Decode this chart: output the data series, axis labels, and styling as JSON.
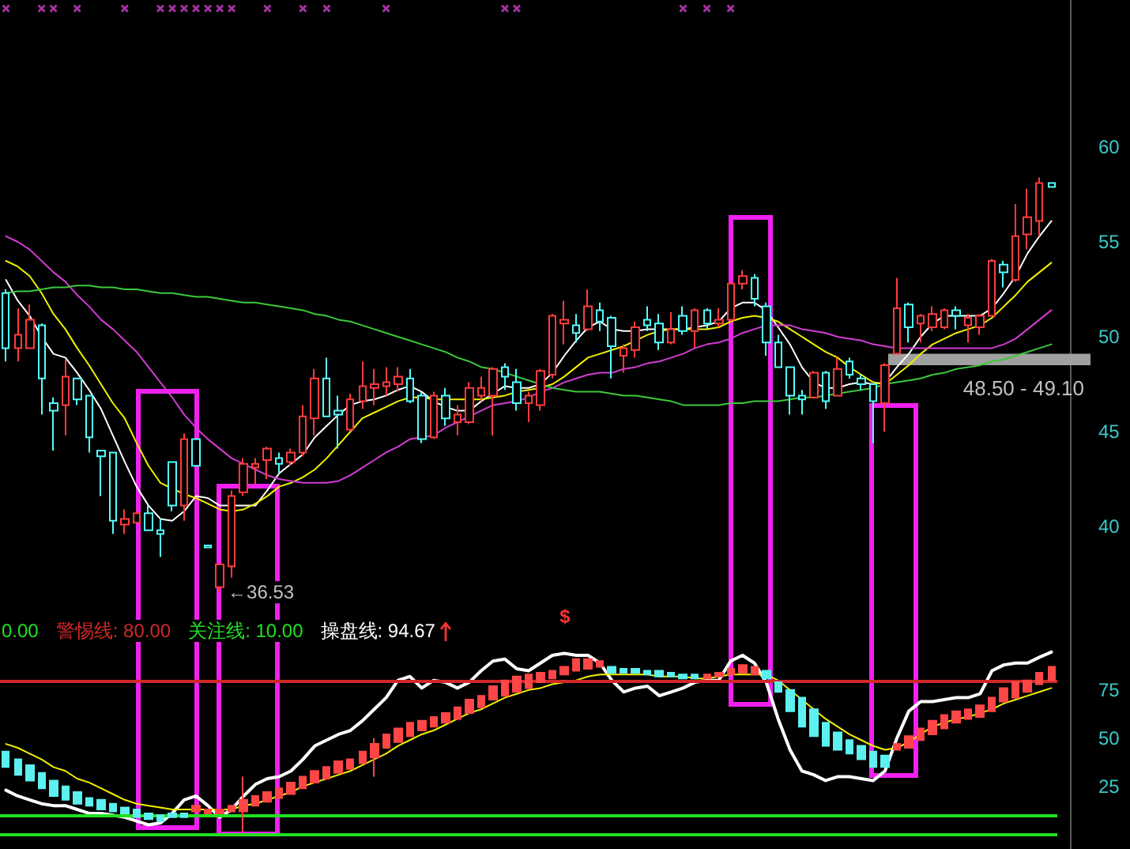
{
  "chart_data": [
    {
      "type": "candlestick",
      "categories": [
        null,
        null,
        null,
        null,
        null,
        null,
        null,
        null,
        null,
        null,
        null,
        null,
        null,
        null,
        null,
        null,
        null,
        null,
        null,
        null,
        null,
        null,
        null,
        null,
        null,
        null,
        null,
        null,
        null,
        null,
        null,
        null,
        null,
        null,
        null,
        null,
        null,
        null,
        null,
        null,
        null,
        null,
        null,
        null,
        null,
        null,
        null,
        null,
        null,
        null,
        null,
        null,
        null,
        null,
        null,
        null,
        null,
        null,
        null,
        null,
        null,
        null,
        null,
        null,
        null,
        null,
        null,
        null,
        null,
        null,
        null,
        null,
        null,
        null,
        null,
        null,
        null,
        null,
        null,
        null,
        null,
        null,
        null,
        null,
        null,
        null,
        null,
        null,
        null
      ],
      "ohlc": [
        [
          52.3,
          52.5,
          48.7,
          49.4
        ],
        [
          49.4,
          51.5,
          48.7,
          50.1
        ],
        [
          49.4,
          51.7,
          49.4,
          50.9
        ],
        [
          50.6,
          50.7,
          45.9,
          47.8
        ],
        [
          46.5,
          46.8,
          44.0,
          46.1
        ],
        [
          46.4,
          48.8,
          44.8,
          47.9
        ],
        [
          47.8,
          47.8,
          46.4,
          46.7
        ],
        [
          46.9,
          46.9,
          43.9,
          44.7
        ],
        [
          44.0,
          44.0,
          41.6,
          43.7
        ],
        [
          43.9,
          43.9,
          39.6,
          40.3
        ],
        [
          40.1,
          40.9,
          39.6,
          40.4
        ],
        [
          40.2,
          40.8,
          40.2,
          40.7
        ],
        [
          40.7,
          41.1,
          39.8,
          39.8
        ],
        [
          39.8,
          40.4,
          38.4,
          39.6
        ],
        [
          43.4,
          43.4,
          40.8,
          41.1
        ],
        [
          41.1,
          44.9,
          40.3,
          44.6
        ],
        [
          44.6,
          44.6,
          43.2,
          43.2
        ],
        [
          39.0,
          39.0,
          38.9,
          38.9
        ],
        [
          36.8,
          38.0,
          36.53,
          38.0
        ],
        [
          37.9,
          41.9,
          37.3,
          41.6
        ],
        [
          41.8,
          43.6,
          41.6,
          43.3
        ],
        [
          43.1,
          43.6,
          42.2,
          43.3
        ],
        [
          43.5,
          44.2,
          42.5,
          44.1
        ],
        [
          43.6,
          43.9,
          42.8,
          43.3
        ],
        [
          43.4,
          44.1,
          43.2,
          43.9
        ],
        [
          43.9,
          46.4,
          43.7,
          45.8
        ],
        [
          45.7,
          48.3,
          44.8,
          47.8
        ],
        [
          47.8,
          48.9,
          45.8,
          45.8
        ],
        [
          46.1,
          46.9,
          44.1,
          45.9
        ],
        [
          45.1,
          47.0,
          45.0,
          46.7
        ],
        [
          46.6,
          48.7,
          46.2,
          47.4
        ],
        [
          47.3,
          48.3,
          46.4,
          47.5
        ],
        [
          47.4,
          48.4,
          46.9,
          47.6
        ],
        [
          47.5,
          48.4,
          47.1,
          47.9
        ],
        [
          47.8,
          48.3,
          46.5,
          46.6
        ],
        [
          46.9,
          47.1,
          44.4,
          44.6
        ],
        [
          44.7,
          47.1,
          44.6,
          46.9
        ],
        [
          46.9,
          47.3,
          45.3,
          45.7
        ],
        [
          45.5,
          46.4,
          44.8,
          45.9
        ],
        [
          45.5,
          47.6,
          45.4,
          47.3
        ],
        [
          46.9,
          47.9,
          46.6,
          47.3
        ],
        [
          46.9,
          48.4,
          44.8,
          48.3
        ],
        [
          48.4,
          48.6,
          47.2,
          47.9
        ],
        [
          47.6,
          48.3,
          46.1,
          46.5
        ],
        [
          46.5,
          47.1,
          45.5,
          46.9
        ],
        [
          46.4,
          48.3,
          46.1,
          48.2
        ],
        [
          48.0,
          51.2,
          47.8,
          51.1
        ],
        [
          50.7,
          51.9,
          49.6,
          50.9
        ],
        [
          50.6,
          51.2,
          49.7,
          50.2
        ],
        [
          50.4,
          52.5,
          50.3,
          51.6
        ],
        [
          51.4,
          51.8,
          50.3,
          50.8
        ],
        [
          51.0,
          51.1,
          47.8,
          49.5
        ],
        [
          49.0,
          49.6,
          48.1,
          49.4
        ],
        [
          49.3,
          50.8,
          48.9,
          50.5
        ],
        [
          50.9,
          51.6,
          50.3,
          50.6
        ],
        [
          50.7,
          51.2,
          49.3,
          49.7
        ],
        [
          49.7,
          51.3,
          49.6,
          50.4
        ],
        [
          51.1,
          51.6,
          50.1,
          50.3
        ],
        [
          50.3,
          51.5,
          49.4,
          51.4
        ],
        [
          51.4,
          51.5,
          50.4,
          50.7
        ],
        [
          50.7,
          51.5,
          50.5,
          50.9
        ],
        [
          50.9,
          52.9,
          50.8,
          52.8
        ],
        [
          52.8,
          53.5,
          52.5,
          53.2
        ],
        [
          53.1,
          53.3,
          51.6,
          52.0
        ],
        [
          51.6,
          51.8,
          49.0,
          49.7
        ],
        [
          49.7,
          50.1,
          48.4,
          48.4
        ],
        [
          48.4,
          48.4,
          45.9,
          46.9
        ],
        [
          46.9,
          47.2,
          45.9,
          46.7
        ],
        [
          46.8,
          48.2,
          46.8,
          48.1
        ],
        [
          48.1,
          48.2,
          46.2,
          46.6
        ],
        [
          46.9,
          48.9,
          46.9,
          48.3
        ],
        [
          48.7,
          48.9,
          47.8,
          48.0
        ],
        [
          47.8,
          48.0,
          47.2,
          47.5
        ],
        [
          47.5,
          47.5,
          44.4,
          46.6
        ],
        [
          46.5,
          48.6,
          45.0,
          48.5
        ],
        [
          49.1,
          53.1,
          49.1,
          51.5
        ],
        [
          51.7,
          51.8,
          49.7,
          50.5
        ],
        [
          50.7,
          51.2,
          49.7,
          51.1
        ],
        [
          50.5,
          51.6,
          50.3,
          51.2
        ],
        [
          50.5,
          51.5,
          50.4,
          51.4
        ],
        [
          51.4,
          51.6,
          50.4,
          51.1
        ],
        [
          50.6,
          51.2,
          49.7,
          51.0
        ],
        [
          50.5,
          51.2,
          50.1,
          51.1
        ],
        [
          51.1,
          54.1,
          51.1,
          54.0
        ],
        [
          53.8,
          54.0,
          52.6,
          53.4
        ],
        [
          53.0,
          57.0,
          52.9,
          55.3
        ],
        [
          55.4,
          57.8,
          54.6,
          56.3
        ],
        [
          56.1,
          58.4,
          55.3,
          58.1
        ],
        [
          58.1,
          58.1,
          57.9,
          57.9
        ]
      ],
      "colors": [
        "#54fcfc",
        "#ff3c3c",
        "#ff3c3c",
        "#54fcfc",
        "#54fcfc",
        "#ff3c3c",
        "#54fcfc",
        "#54fcfc",
        "#54fcfc",
        "#54fcfc",
        "#ff3c3c",
        "#ff3c3c",
        "#54fcfc",
        "#54fcfc",
        "#54fcfc",
        "#ff3c3c",
        "#54fcfc",
        "#54fcfc",
        "#ff3c3c",
        "#ff3c3c",
        "#ff3c3c",
        "#ff3c3c",
        "#ff3c3c",
        "#54fcfc",
        "#ff3c3c",
        "#ff3c3c",
        "#ff3c3c",
        "#54fcfc",
        "#54fcfc",
        "#ff3c3c",
        "#ff3c3c",
        "#ff3c3c",
        "#ff3c3c",
        "#ff3c3c",
        "#54fcfc",
        "#54fcfc",
        "#ff3c3c",
        "#54fcfc",
        "#ff3c3c",
        "#ff3c3c",
        "#ff3c3c",
        "#ff3c3c",
        "#54fcfc",
        "#54fcfc",
        "#ff3c3c",
        "#ff3c3c",
        "#ff3c3c",
        "#ff3c3c",
        "#54fcfc",
        "#ff3c3c",
        "#54fcfc",
        "#54fcfc",
        "#ff3c3c",
        "#ff3c3c",
        "#54fcfc",
        "#54fcfc",
        "#ff3c3c",
        "#54fcfc",
        "#ff3c3c",
        "#54fcfc",
        "#ff3c3c",
        "#ff3c3c",
        "#ff3c3c",
        "#54fcfc",
        "#54fcfc",
        "#54fcfc",
        "#54fcfc",
        "#54fcfc",
        "#ff3c3c",
        "#54fcfc",
        "#ff3c3c",
        "#54fcfc",
        "#54fcfc",
        "#54fcfc",
        "#ff3c3c",
        "#ff3c3c",
        "#54fcfc",
        "#ff3c3c",
        "#ff3c3c",
        "#ff3c3c",
        "#54fcfc",
        "#ff3c3c",
        "#ff3c3c",
        "#ff3c3c",
        "#54fcfc",
        "#ff3c3c",
        "#ff3c3c",
        "#ff3c3c",
        "#54fcfc"
      ],
      "series": [
        {
          "type": "line",
          "color": "#ffffff",
          "values": [
            53.0,
            51.9,
            51.1,
            50.0,
            49.1,
            48.9,
            48.1,
            47.2,
            46.2,
            44.8,
            43.4,
            42.1,
            41.1,
            40.4,
            40.3,
            40.8,
            41.6,
            41.5,
            41.1,
            41.1,
            41.1,
            41.1,
            41.9,
            42.8,
            43.3,
            43.8,
            44.7,
            45.3,
            45.9,
            46.4,
            46.6,
            46.7,
            46.9,
            47.2,
            47.4,
            47.1,
            46.6,
            46.3,
            46.1,
            46.1,
            46.6,
            47.0,
            47.4,
            47.3,
            47.3,
            47.5,
            48.1,
            49.0,
            49.8,
            50.5,
            50.8,
            50.4,
            50.3,
            50.3,
            50.4,
            50.4,
            50.4,
            50.4,
            50.5,
            50.6,
            50.8,
            51.5,
            51.8,
            51.8,
            51.4,
            50.5,
            49.6,
            48.4,
            47.6,
            47.3,
            47.3,
            47.5,
            47.6,
            47.5,
            47.6,
            48.4,
            49.1,
            50.0,
            50.7,
            51.1,
            51.1,
            51.1,
            51.1,
            51.5,
            52.3,
            53.2,
            54.4,
            55.3,
            56.1
          ]
        },
        {
          "type": "line",
          "color": "#f0f000",
          "values": [
            54.0,
            53.7,
            53.2,
            52.3,
            51.2,
            50.4,
            49.4,
            48.5,
            47.5,
            46.5,
            45.7,
            44.4,
            43.2,
            42.3,
            42.0,
            41.7,
            41.5,
            41.2,
            40.9,
            40.8,
            40.9,
            41.2,
            41.6,
            42.1,
            42.3,
            42.6,
            43.0,
            43.6,
            44.3,
            45.0,
            45.7,
            46.0,
            46.3,
            46.6,
            46.8,
            46.8,
            46.7,
            46.7,
            46.7,
            46.7,
            46.7,
            46.8,
            46.9,
            47.1,
            47.2,
            47.3,
            47.5,
            47.9,
            48.4,
            48.9,
            49.1,
            49.3,
            49.5,
            49.8,
            50.1,
            50.3,
            50.4,
            50.4,
            50.4,
            50.4,
            50.5,
            50.8,
            51.0,
            51.1,
            51.0,
            50.8,
            50.4,
            50.0,
            49.6,
            49.2,
            48.9,
            48.4,
            48.0,
            47.6,
            47.5,
            48.0,
            48.5,
            49.1,
            49.6,
            49.9,
            50.2,
            50.4,
            50.6,
            51.0,
            51.6,
            52.2,
            52.9,
            53.4,
            53.9
          ]
        },
        {
          "type": "line",
          "color": "#d23cd2",
          "values": [
            55.3,
            55.0,
            54.6,
            54.0,
            53.4,
            52.9,
            52.2,
            51.6,
            50.9,
            50.4,
            49.8,
            49.2,
            48.4,
            47.6,
            46.8,
            45.9,
            45.2,
            44.6,
            44.1,
            43.6,
            43.3,
            43.0,
            42.7,
            42.5,
            42.4,
            42.3,
            42.3,
            42.3,
            42.4,
            42.7,
            43.1,
            43.5,
            43.9,
            44.2,
            44.6,
            44.7,
            44.8,
            45.2,
            45.5,
            45.8,
            46.1,
            46.4,
            46.5,
            46.6,
            46.8,
            47.1,
            47.3,
            47.6,
            47.8,
            48.0,
            48.1,
            48.1,
            48.3,
            48.4,
            48.6,
            48.7,
            48.9,
            49.1,
            49.4,
            49.6,
            49.7,
            49.9,
            50.2,
            50.4,
            50.6,
            50.6,
            50.6,
            50.4,
            50.3,
            50.2,
            50.0,
            49.9,
            49.8,
            49.6,
            49.5,
            49.4,
            49.4,
            49.4,
            49.4,
            49.4,
            49.4,
            49.4,
            49.4,
            49.4,
            49.6,
            49.9,
            50.4,
            50.9,
            51.4
          ]
        },
        {
          "type": "line",
          "color": "#3cc83c",
          "values": [
            52.3,
            52.4,
            52.4,
            52.5,
            52.6,
            52.6,
            52.7,
            52.7,
            52.6,
            52.6,
            52.5,
            52.5,
            52.4,
            52.3,
            52.3,
            52.2,
            52.1,
            52.1,
            52.0,
            51.9,
            51.8,
            51.8,
            51.7,
            51.6,
            51.5,
            51.4,
            51.2,
            51.1,
            50.9,
            50.8,
            50.6,
            50.4,
            50.2,
            50.0,
            49.8,
            49.6,
            49.4,
            49.2,
            48.9,
            48.7,
            48.4,
            48.3,
            48.1,
            47.9,
            47.7,
            47.5,
            47.3,
            47.2,
            47.1,
            47.1,
            47.1,
            47.0,
            46.9,
            46.9,
            46.8,
            46.7,
            46.6,
            46.4,
            46.4,
            46.4,
            46.4,
            46.5,
            46.5,
            46.6,
            46.6,
            46.6,
            46.7,
            46.8,
            46.8,
            46.9,
            47.0,
            47.1,
            47.2,
            47.3,
            47.5,
            47.6,
            47.7,
            47.8,
            48.0,
            48.1,
            48.3,
            48.4,
            48.5,
            48.7,
            48.8,
            49.0,
            49.2,
            49.4,
            49.6
          ]
        },
        {
          "type": "scatter",
          "marker": "cross",
          "color": "#d040d0",
          "values": [
            67.3,
            null,
            null,
            67.3,
            67.3,
            null,
            67.3,
            null,
            null,
            null,
            67.3,
            null,
            null,
            67.3,
            67.3,
            67.3,
            67.3,
            67.3,
            67.3,
            67.3,
            null,
            null,
            67.3,
            null,
            null,
            67.3,
            null,
            67.3,
            null,
            null,
            null,
            null,
            67.3,
            null,
            null,
            null,
            null,
            null,
            null,
            null,
            null,
            null,
            67.3,
            67.3,
            null,
            null,
            null,
            null,
            null,
            null,
            null,
            null,
            null,
            null,
            null,
            null,
            null,
            67.3,
            null,
            67.3,
            null,
            67.3,
            null,
            null,
            null,
            null,
            null,
            null,
            null,
            null,
            null,
            null,
            null,
            null,
            null,
            null,
            null,
            null,
            null,
            null,
            null,
            null,
            null,
            null,
            null,
            null,
            null,
            null,
            null
          ]
        }
      ],
      "ylim": [
        35.75,
        67.75
      ],
      "yticks": [
        60,
        55,
        50,
        45,
        40
      ],
      "tick_labels": "y",
      "bands": [
        {
          "axis": "y",
          "from": 48.5,
          "to": 49.1,
          "label": "48.50 - 49.10",
          "color": "#a0a0a0"
        }
      ],
      "annotations": [
        "←36.53"
      ]
    },
    {
      "type": "candlestick",
      "categories": [
        null,
        null,
        null,
        null,
        null,
        null,
        null,
        null,
        null,
        null,
        null,
        null,
        null,
        null,
        null,
        null,
        null,
        null,
        null,
        null,
        null,
        null,
        null,
        null,
        null,
        null,
        null,
        null,
        null,
        null,
        null,
        null,
        null,
        null,
        null,
        null,
        null,
        null,
        null,
        null,
        null,
        null,
        null,
        null,
        null,
        null,
        null,
        null,
        null,
        null,
        null,
        null,
        null,
        null,
        null,
        null,
        null,
        null,
        null,
        null,
        null,
        null,
        null,
        null,
        null,
        null,
        null,
        null,
        null,
        null,
        null,
        null,
        null,
        null,
        null,
        null,
        null,
        null,
        null,
        null,
        null,
        null,
        null,
        null,
        null,
        null,
        null,
        null,
        null
      ],
      "ohlc": [
        [
          43,
          43,
          35,
          35
        ],
        [
          39,
          39,
          31,
          31
        ],
        [
          36,
          36,
          28,
          28
        ],
        [
          32,
          32,
          24,
          24
        ],
        [
          28,
          28,
          20,
          20
        ],
        [
          25,
          25,
          18,
          18
        ],
        [
          22,
          22,
          16,
          16
        ],
        [
          19,
          19,
          15,
          15
        ],
        [
          18,
          18,
          13,
          13
        ],
        [
          16,
          16,
          12,
          12
        ],
        [
          14,
          14,
          11,
          11
        ],
        [
          13,
          13,
          9,
          9
        ],
        [
          11,
          11,
          8,
          8
        ],
        [
          10,
          10,
          7,
          7
        ],
        [
          11,
          11,
          9,
          9
        ],
        [
          11,
          11,
          9,
          9
        ],
        [
          12,
          15,
          12,
          15
        ],
        [
          11,
          13,
          11,
          13
        ],
        [
          11,
          13,
          11,
          13
        ],
        [
          12,
          15,
          12,
          15
        ],
        [
          12,
          30,
          1,
          18
        ],
        [
          15,
          20,
          15,
          20
        ],
        [
          17,
          22,
          17,
          22
        ],
        [
          19,
          24,
          19,
          24
        ],
        [
          21,
          27,
          21,
          27
        ],
        [
          24,
          30,
          24,
          30
        ],
        [
          27,
          33,
          27,
          33
        ],
        [
          29,
          35,
          29,
          35
        ],
        [
          32,
          38,
          32,
          38
        ],
        [
          34,
          39,
          34,
          39
        ],
        [
          37,
          43,
          37,
          43
        ],
        [
          40,
          50,
          30,
          47
        ],
        [
          45,
          52,
          45,
          52
        ],
        [
          48,
          55,
          48,
          55
        ],
        [
          51,
          58,
          51,
          58
        ],
        [
          54,
          59,
          54,
          59
        ],
        [
          56,
          61,
          56,
          61
        ],
        [
          58,
          63,
          58,
          63
        ],
        [
          60,
          66,
          60,
          66
        ],
        [
          63,
          70,
          63,
          70
        ],
        [
          66,
          72,
          66,
          72
        ],
        [
          70,
          77,
          70,
          77
        ],
        [
          72,
          80,
          72,
          80
        ],
        [
          74,
          82,
          74,
          82
        ],
        [
          76,
          83,
          76,
          83
        ],
        [
          79,
          84,
          79,
          84
        ],
        [
          81,
          85,
          81,
          85
        ],
        [
          83,
          87,
          83,
          87
        ],
        [
          85,
          91,
          85,
          91
        ],
        [
          86,
          91,
          86,
          91
        ],
        [
          87,
          90,
          87,
          90
        ],
        [
          87,
          87,
          84,
          84
        ],
        [
          86,
          86,
          84,
          84
        ],
        [
          86,
          86,
          84,
          84
        ],
        [
          85,
          85,
          83,
          83
        ],
        [
          85,
          85,
          82,
          82
        ],
        [
          84,
          84,
          82,
          82
        ],
        [
          83,
          83,
          81,
          81
        ],
        [
          83,
          83,
          81,
          81
        ],
        [
          81,
          83,
          81,
          83
        ],
        [
          82,
          84,
          82,
          84
        ],
        [
          83,
          86,
          83,
          86
        ],
        [
          84,
          88,
          84,
          88
        ],
        [
          83,
          87,
          83,
          87
        ],
        [
          85,
          85,
          81,
          81
        ],
        [
          79,
          79,
          74,
          74
        ],
        [
          75,
          75,
          64,
          64
        ],
        [
          71,
          71,
          56,
          56
        ],
        [
          65,
          65,
          51,
          51
        ],
        [
          58,
          58,
          46,
          46
        ],
        [
          53,
          53,
          44,
          44
        ],
        [
          49,
          49,
          42,
          42
        ],
        [
          46,
          46,
          39,
          39
        ],
        [
          43,
          43,
          35,
          35
        ],
        [
          41,
          41,
          35,
          35
        ],
        [
          44,
          47,
          44,
          47
        ],
        [
          45,
          51,
          45,
          51
        ],
        [
          49,
          55,
          49,
          55
        ],
        [
          52,
          59,
          52,
          59
        ],
        [
          55,
          62,
          55,
          62
        ],
        [
          58,
          64,
          58,
          64
        ],
        [
          60,
          65,
          60,
          65
        ],
        [
          61,
          67,
          61,
          67
        ],
        [
          64,
          71,
          64,
          71
        ],
        [
          69,
          76,
          69,
          76
        ],
        [
          71,
          79,
          71,
          79
        ],
        [
          74,
          80,
          74,
          80
        ],
        [
          78,
          84,
          78,
          84
        ],
        [
          80,
          87,
          80,
          87
        ]
      ],
      "colors": [
        "#5cf0f0",
        "#5cf0f0",
        "#5cf0f0",
        "#5cf0f0",
        "#5cf0f0",
        "#5cf0f0",
        "#5cf0f0",
        "#5cf0f0",
        "#5cf0f0",
        "#5cf0f0",
        "#5cf0f0",
        "#5cf0f0",
        "#5cf0f0",
        "#5cf0f0",
        "#5cf0f0",
        "#5cf0f0",
        "#ff4646",
        "#ff4646",
        "#ff4646",
        "#ff4646",
        "#ff4646",
        "#ff4646",
        "#ff4646",
        "#ff4646",
        "#ff4646",
        "#ff4646",
        "#ff4646",
        "#ff4646",
        "#ff4646",
        "#ff4646",
        "#ff4646",
        "#ff4646",
        "#ff4646",
        "#ff4646",
        "#ff4646",
        "#ff4646",
        "#ff4646",
        "#ff4646",
        "#ff4646",
        "#ff4646",
        "#ff4646",
        "#ff4646",
        "#ff4646",
        "#ff4646",
        "#ff4646",
        "#ff4646",
        "#ff4646",
        "#ff4646",
        "#ff4646",
        "#ff4646",
        "#ff4646",
        "#5cf0f0",
        "#5cf0f0",
        "#5cf0f0",
        "#5cf0f0",
        "#5cf0f0",
        "#5cf0f0",
        "#5cf0f0",
        "#5cf0f0",
        "#ff4646",
        "#ff4646",
        "#ff4646",
        "#ff4646",
        "#ff4646",
        "#5cf0f0",
        "#5cf0f0",
        "#5cf0f0",
        "#5cf0f0",
        "#5cf0f0",
        "#5cf0f0",
        "#5cf0f0",
        "#5cf0f0",
        "#5cf0f0",
        "#5cf0f0",
        "#5cf0f0",
        "#ff4646",
        "#ff4646",
        "#ff4646",
        "#ff4646",
        "#ff4646",
        "#ff4646",
        "#ff4646",
        "#ff4646",
        "#ff4646",
        "#ff4646",
        "#ff4646",
        "#ff4646",
        "#ff4646",
        "#ff4646"
      ],
      "series": [
        {
          "type": "line",
          "name": "操盘线: 94.67",
          "color": "#ffffff",
          "values": [
            23,
            20,
            18,
            16,
            15,
            15,
            13,
            11,
            11,
            10,
            9,
            7,
            5,
            6,
            11,
            18,
            20,
            15,
            9,
            13,
            20,
            26,
            29,
            30,
            33,
            39,
            46,
            49,
            52,
            54,
            59,
            65,
            71,
            80,
            82,
            76,
            80,
            79,
            76,
            79,
            85,
            90,
            91,
            86,
            85,
            89,
            93,
            94,
            93,
            93,
            89,
            80,
            74,
            76,
            77,
            72,
            74,
            76,
            79,
            80,
            80,
            90,
            93,
            89,
            79,
            60,
            44,
            33,
            31,
            28,
            30,
            30,
            29,
            28,
            33,
            50,
            64,
            69,
            69,
            70,
            71,
            71,
            73,
            85,
            88,
            89,
            89,
            92,
            94.67
          ]
        },
        {
          "type": "line",
          "color": "#f0f000",
          "values": [
            47,
            45,
            42,
            39,
            35,
            33,
            29,
            27,
            24,
            21,
            18,
            16,
            15,
            14,
            13,
            13,
            13,
            13,
            13,
            13,
            15,
            16,
            18,
            20,
            22,
            25,
            27,
            29,
            31,
            33,
            36,
            39,
            42,
            46,
            49,
            52,
            54,
            57,
            60,
            63,
            65,
            68,
            71,
            73,
            75,
            76,
            78,
            79,
            80,
            82,
            83,
            83,
            83,
            83,
            83,
            82,
            82,
            82,
            81,
            81,
            82,
            83,
            83,
            83,
            83,
            80,
            75,
            70,
            65,
            60,
            56,
            52,
            49,
            46,
            44,
            45,
            48,
            52,
            56,
            58,
            60,
            61,
            63,
            65,
            68,
            70,
            72,
            74,
            76
          ]
        }
      ],
      "ylim": [
        -7.5,
        118
      ],
      "yticks": [
        75,
        50,
        25
      ],
      "tick_labels": "y",
      "ref_lines": [
        {
          "axis": "y",
          "value": 0,
          "label": "0.00",
          "color": "#22e022"
        },
        {
          "axis": "y",
          "value": 80,
          "label": "警惕线: 80.00",
          "color": "#d02828"
        },
        {
          "axis": "y",
          "value": 10,
          "label": "关注线: 10.00",
          "color": "#22e022"
        }
      ],
      "annotations": [
        "$"
      ]
    }
  ]
}
